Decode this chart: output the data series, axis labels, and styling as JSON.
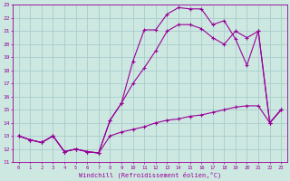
{
  "xlabel": "Windchill (Refroidissement éolien,°C)",
  "bg_color": "#cce8e0",
  "grid_color": "#aacccc",
  "line_color": "#990099",
  "xlim": [
    -0.5,
    23.5
  ],
  "ylim": [
    11,
    23
  ],
  "xticks": [
    0,
    1,
    2,
    3,
    4,
    5,
    6,
    7,
    8,
    9,
    10,
    11,
    12,
    13,
    14,
    15,
    16,
    17,
    18,
    19,
    20,
    21,
    22,
    23
  ],
  "yticks": [
    11,
    12,
    13,
    14,
    15,
    16,
    17,
    18,
    19,
    20,
    21,
    22,
    23
  ],
  "line1_x": [
    0,
    1,
    2,
    3,
    4,
    5,
    6,
    7,
    8,
    9,
    10,
    11,
    12,
    13,
    14,
    15,
    16,
    17,
    18,
    19,
    20,
    21,
    22,
    23
  ],
  "line1_y": [
    13,
    12.7,
    12.5,
    13,
    11.8,
    12,
    11.8,
    11.7,
    14.2,
    15.5,
    18.7,
    21.1,
    21.1,
    22.3,
    22.8,
    22.7,
    22.7,
    21.5,
    21.8,
    20.4,
    18.4,
    21.0,
    14.0,
    15.0
  ],
  "line2_x": [
    0,
    1,
    2,
    3,
    4,
    5,
    6,
    7,
    8,
    9,
    10,
    11,
    12,
    13,
    14,
    15,
    16,
    17,
    18,
    19,
    20,
    21,
    22,
    23
  ],
  "line2_y": [
    13,
    12.7,
    12.5,
    13,
    11.8,
    12,
    11.8,
    11.7,
    13.0,
    13.3,
    13.5,
    13.7,
    14.0,
    14.2,
    14.3,
    14.5,
    14.6,
    14.8,
    15.0,
    15.2,
    15.3,
    15.3,
    14.0,
    15.0
  ],
  "line3_x": [
    0,
    1,
    2,
    3,
    4,
    5,
    6,
    7,
    8,
    9,
    10,
    11,
    12,
    13,
    14,
    15,
    16,
    17,
    18,
    19,
    20,
    21,
    22,
    23
  ],
  "line3_y": [
    13,
    12.7,
    12.5,
    13,
    11.8,
    12,
    11.8,
    11.7,
    14.2,
    15.5,
    17.0,
    18.2,
    19.5,
    21.0,
    21.5,
    21.5,
    21.2,
    20.5,
    20.0,
    21.0,
    20.5,
    21.0,
    14.0,
    15.0
  ]
}
